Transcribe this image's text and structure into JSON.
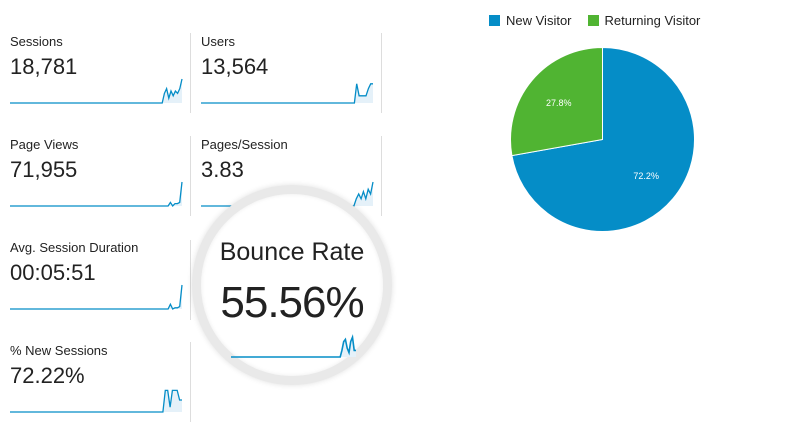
{
  "metrics": [
    {
      "label": "Sessions",
      "value": "18,781",
      "spark": [
        0,
        0,
        0,
        0,
        0,
        0,
        0,
        0,
        0,
        0,
        0,
        0,
        0,
        0,
        0,
        0,
        0,
        0,
        0,
        0,
        0,
        0,
        0,
        0,
        0,
        0,
        0,
        0,
        0,
        0,
        0,
        0,
        0,
        0,
        0,
        0,
        0,
        0,
        0,
        0,
        0,
        0,
        0,
        0,
        0,
        0,
        0,
        0,
        0,
        0,
        0,
        0,
        0,
        0,
        0,
        0,
        0,
        0,
        0,
        0,
        0,
        0,
        0,
        0,
        0,
        0,
        0,
        0,
        0,
        0,
        0.4,
        0.6,
        0.2,
        0.5,
        0.3,
        0.5,
        0.4,
        0.6,
        1.0
      ]
    },
    {
      "label": "Users",
      "value": "13,564",
      "spark": [
        0,
        0,
        0,
        0,
        0,
        0,
        0,
        0,
        0,
        0,
        0,
        0,
        0,
        0,
        0,
        0,
        0,
        0,
        0,
        0,
        0,
        0,
        0,
        0,
        0,
        0,
        0,
        0,
        0,
        0,
        0,
        0,
        0,
        0,
        0,
        0,
        0,
        0,
        0,
        0,
        0,
        0,
        0,
        0,
        0,
        0,
        0,
        0,
        0,
        0,
        0,
        0,
        0,
        0,
        0,
        0,
        0,
        0,
        0,
        0,
        0,
        0,
        0,
        0,
        0,
        0,
        0,
        0.8,
        0.3,
        0.3,
        0.3,
        0.3,
        0.6,
        0.8,
        0.8
      ]
    },
    {
      "label": "Page Views",
      "value": "71,955",
      "spark": [
        0,
        0,
        0,
        0,
        0,
        0,
        0,
        0,
        0,
        0,
        0,
        0,
        0,
        0,
        0,
        0,
        0,
        0,
        0,
        0,
        0,
        0,
        0,
        0,
        0,
        0,
        0,
        0,
        0,
        0,
        0,
        0,
        0,
        0,
        0,
        0,
        0,
        0,
        0,
        0,
        0,
        0,
        0,
        0,
        0,
        0,
        0,
        0,
        0,
        0,
        0,
        0,
        0,
        0,
        0,
        0,
        0,
        0,
        0,
        0,
        0,
        0,
        0,
        0,
        0,
        0,
        0,
        0,
        0,
        0.15,
        0,
        0.1,
        0.1,
        0.15,
        1.0
      ]
    },
    {
      "label": "Pages/Session",
      "value": "3.83",
      "spark": [
        0,
        0,
        0,
        0,
        0,
        0,
        0,
        0,
        0,
        0,
        0,
        0,
        0,
        0,
        0,
        0,
        0,
        0,
        0,
        0,
        0,
        0,
        0,
        0,
        0,
        0,
        0,
        0,
        0,
        0,
        0,
        0,
        0,
        0,
        0,
        0,
        0,
        0,
        0,
        0,
        0,
        0,
        0,
        0,
        0,
        0,
        0,
        0,
        0,
        0,
        0,
        0,
        0,
        0,
        0,
        0,
        0,
        0,
        0,
        0,
        0,
        0,
        0,
        0,
        0,
        0.3,
        0.5,
        0.3,
        0.6,
        0.3,
        0.7,
        0.5,
        1.0
      ]
    },
    {
      "label": "Avg. Session Duration",
      "value": "00:05:51",
      "spark": [
        0,
        0,
        0,
        0,
        0,
        0,
        0,
        0,
        0,
        0,
        0,
        0,
        0,
        0,
        0,
        0,
        0,
        0,
        0,
        0,
        0,
        0,
        0,
        0,
        0,
        0,
        0,
        0,
        0,
        0,
        0,
        0,
        0,
        0,
        0,
        0,
        0,
        0,
        0,
        0,
        0,
        0,
        0,
        0,
        0,
        0,
        0,
        0,
        0,
        0,
        0,
        0,
        0,
        0,
        0,
        0,
        0,
        0,
        0,
        0,
        0,
        0,
        0,
        0,
        0,
        0,
        0,
        0,
        0,
        0.2,
        0,
        0.05,
        0.05,
        0.1,
        1.0
      ]
    },
    {
      "label": "% New Sessions",
      "value": "72.22%",
      "spark": [
        0,
        0,
        0,
        0,
        0,
        0,
        0,
        0,
        0,
        0,
        0,
        0,
        0,
        0,
        0,
        0,
        0,
        0,
        0,
        0,
        0,
        0,
        0,
        0,
        0,
        0,
        0,
        0,
        0,
        0,
        0,
        0,
        0,
        0,
        0,
        0,
        0,
        0,
        0,
        0,
        0,
        0,
        0,
        0,
        0,
        0,
        0,
        0,
        0,
        0,
        0,
        0,
        0,
        0,
        0,
        0,
        0,
        0,
        0,
        0,
        0,
        0,
        0,
        0,
        0,
        0.9,
        0.9,
        0.2,
        0.9,
        0.9,
        0.9,
        0.5,
        0.5
      ]
    }
  ],
  "bounce": {
    "label": "Bounce Rate",
    "value": "55.56%",
    "spark": [
      0,
      0,
      0,
      0,
      0,
      0,
      0,
      0,
      0,
      0,
      0,
      0,
      0,
      0,
      0,
      0,
      0,
      0,
      0,
      0,
      0,
      0,
      0,
      0,
      0,
      0,
      0,
      0,
      0,
      0,
      0,
      0,
      0,
      0,
      0,
      0,
      0,
      0,
      0,
      0,
      0,
      0,
      0,
      0,
      0,
      0,
      0,
      0,
      0,
      0,
      0,
      0,
      0,
      0,
      0,
      0,
      0,
      0,
      0,
      0,
      0,
      0,
      0,
      0.3,
      0.7,
      0.8,
      0.4,
      0.2,
      0.7,
      0.9,
      0.3,
      0.3
    ]
  },
  "colors": {
    "accent": "#058dc7",
    "secondary": "#50b432",
    "spark_fill": "#e5f1f9"
  },
  "chart_data": {
    "type": "pie",
    "legend_position": "top",
    "series": [
      {
        "name": "New Visitor",
        "value": 72.2,
        "label": "72.2%",
        "color": "#058dc7"
      },
      {
        "name": "Returning Visitor",
        "value": 27.8,
        "label": "27.8%",
        "color": "#50b432"
      }
    ]
  }
}
